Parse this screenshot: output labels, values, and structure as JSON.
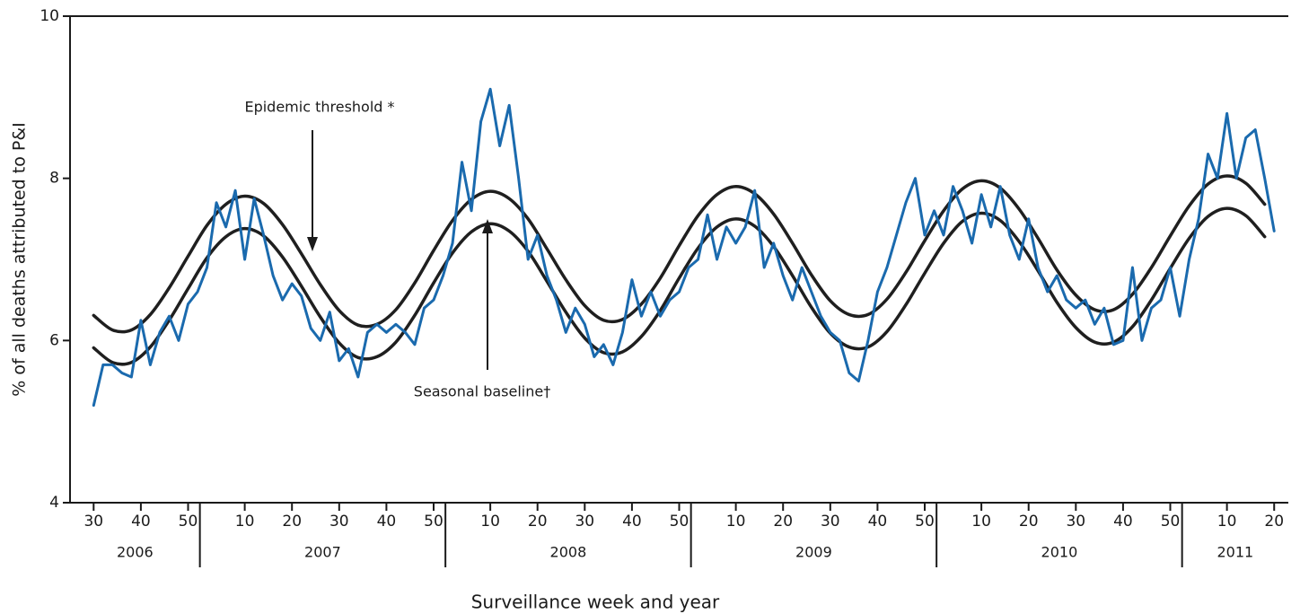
{
  "chart_data": {
    "type": "line",
    "y_label": "% of all deaths attributed to P&I",
    "x_label": "Surveillance week and year",
    "annotations": [
      "Epidemic threshold *",
      "Seasonal baseline†"
    ],
    "xlim": [
      -5,
      253
    ],
    "ylim": [
      4,
      10
    ],
    "yticks": [
      4,
      6,
      8,
      10
    ],
    "xticks": [
      {
        "value": 0,
        "label": "30"
      },
      {
        "value": 10,
        "label": "40"
      },
      {
        "value": 20,
        "label": "50"
      },
      {
        "value": 32,
        "label": "10"
      },
      {
        "value": 42,
        "label": "20"
      },
      {
        "value": 52,
        "label": "30"
      },
      {
        "value": 62,
        "label": "40"
      },
      {
        "value": 72,
        "label": "50"
      },
      {
        "value": 84,
        "label": "10"
      },
      {
        "value": 94,
        "label": "20"
      },
      {
        "value": 104,
        "label": "30"
      },
      {
        "value": 114,
        "label": "40"
      },
      {
        "value": 124,
        "label": "50"
      },
      {
        "value": 136,
        "label": "10"
      },
      {
        "value": 146,
        "label": "20"
      },
      {
        "value": 156,
        "label": "30"
      },
      {
        "value": 166,
        "label": "40"
      },
      {
        "value": 176,
        "label": "50"
      },
      {
        "value": 188,
        "label": "10"
      },
      {
        "value": 198,
        "label": "20"
      },
      {
        "value": 208,
        "label": "30"
      },
      {
        "value": 218,
        "label": "40"
      },
      {
        "value": 228,
        "label": "50"
      },
      {
        "value": 240,
        "label": "10"
      },
      {
        "value": 250,
        "label": "20"
      }
    ],
    "x_groups": [
      {
        "label": "2006",
        "start": -5,
        "end": 22.5
      },
      {
        "label": "2007",
        "start": 22.5,
        "end": 74.5
      },
      {
        "label": "2008",
        "start": 74.5,
        "end": 126.5
      },
      {
        "label": "2009",
        "start": 126.5,
        "end": 178.5
      },
      {
        "label": "2010",
        "start": 178.5,
        "end": 230.5
      },
      {
        "label": "2011",
        "start": 230.5,
        "end": 253
      }
    ],
    "series": [
      {
        "color": "#1f1f1f",
        "smooth": true,
        "x": [
          0,
          4,
          8,
          12,
          16,
          20,
          24,
          28,
          32,
          36,
          40,
          44,
          48,
          52,
          56,
          60,
          64,
          68,
          72,
          76,
          80,
          84,
          88,
          92,
          96,
          100,
          104,
          108,
          112,
          116,
          120,
          124,
          128,
          132,
          136,
          140,
          144,
          148,
          152,
          156,
          160,
          164,
          168,
          172,
          176,
          180,
          184,
          188,
          192,
          196,
          200,
          204,
          208,
          212,
          216,
          220,
          224,
          228,
          232,
          236,
          240,
          244,
          248
        ],
        "values": [
          6.31,
          6.13,
          6.13,
          6.32,
          6.65,
          7.04,
          7.42,
          7.68,
          7.78,
          7.69,
          7.43,
          7.07,
          6.69,
          6.37,
          6.19,
          6.2,
          6.38,
          6.71,
          7.11,
          7.48,
          7.74,
          7.84,
          7.75,
          7.5,
          7.13,
          6.75,
          6.43,
          6.25,
          6.26,
          6.45,
          6.77,
          7.17,
          7.54,
          7.8,
          7.9,
          7.81,
          7.56,
          7.2,
          6.81,
          6.49,
          6.32,
          6.32,
          6.51,
          6.84,
          7.23,
          7.6,
          7.87,
          7.97,
          7.88,
          7.62,
          7.26,
          6.87,
          6.56,
          6.38,
          6.38,
          6.57,
          6.9,
          7.29,
          7.66,
          7.93,
          8.03,
          7.94,
          7.68
        ]
      },
      {
        "color": "#1f1f1f",
        "smooth": true,
        "x": [
          0,
          4,
          8,
          12,
          16,
          20,
          24,
          28,
          32,
          36,
          40,
          44,
          48,
          52,
          56,
          60,
          64,
          68,
          72,
          76,
          80,
          84,
          88,
          92,
          96,
          100,
          104,
          108,
          112,
          116,
          120,
          124,
          128,
          132,
          136,
          140,
          144,
          148,
          152,
          156,
          160,
          164,
          168,
          172,
          176,
          180,
          184,
          188,
          192,
          196,
          200,
          204,
          208,
          212,
          216,
          220,
          224,
          228,
          232,
          236,
          240,
          244,
          248
        ],
        "values": [
          5.91,
          5.73,
          5.73,
          5.92,
          6.25,
          6.64,
          7.02,
          7.28,
          7.38,
          7.29,
          7.03,
          6.67,
          6.29,
          5.97,
          5.79,
          5.8,
          5.98,
          6.31,
          6.71,
          7.08,
          7.34,
          7.44,
          7.35,
          7.1,
          6.73,
          6.35,
          6.03,
          5.85,
          5.86,
          6.05,
          6.37,
          6.77,
          7.14,
          7.4,
          7.5,
          7.41,
          7.16,
          6.8,
          6.41,
          6.09,
          5.92,
          5.92,
          6.11,
          6.44,
          6.83,
          7.2,
          7.47,
          7.57,
          7.48,
          7.22,
          6.86,
          6.47,
          6.16,
          5.98,
          5.98,
          6.17,
          6.5,
          6.89,
          7.26,
          7.53,
          7.63,
          7.54,
          7.28
        ]
      },
      {
        "color": "#1a6aae",
        "smooth": false,
        "x": [
          0,
          2,
          4,
          6,
          8,
          10,
          12,
          14,
          16,
          18,
          20,
          22,
          24,
          26,
          28,
          30,
          32,
          34,
          36,
          38,
          40,
          42,
          44,
          46,
          48,
          50,
          52,
          54,
          56,
          58,
          60,
          62,
          64,
          66,
          68,
          70,
          72,
          74,
          76,
          78,
          80,
          82,
          84,
          86,
          88,
          90,
          92,
          94,
          96,
          98,
          100,
          102,
          104,
          106,
          108,
          110,
          112,
          114,
          116,
          118,
          120,
          122,
          124,
          126,
          128,
          130,
          132,
          134,
          136,
          138,
          140,
          142,
          144,
          146,
          148,
          150,
          152,
          154,
          156,
          158,
          160,
          162,
          164,
          166,
          168,
          170,
          172,
          174,
          176,
          178,
          180,
          182,
          184,
          186,
          188,
          190,
          192,
          194,
          196,
          198,
          200,
          202,
          204,
          206,
          208,
          210,
          212,
          214,
          216,
          218,
          220,
          222,
          224,
          226,
          228,
          230,
          232,
          234,
          236,
          238,
          240,
          242,
          244,
          246,
          248,
          250
        ],
        "values": [
          5.2,
          5.7,
          5.7,
          5.6,
          5.55,
          6.25,
          5.7,
          6.1,
          6.3,
          6.0,
          6.45,
          6.6,
          6.9,
          7.7,
          7.4,
          7.85,
          7.0,
          7.75,
          7.3,
          6.8,
          6.5,
          6.7,
          6.55,
          6.15,
          6.0,
          6.35,
          5.75,
          5.9,
          5.55,
          6.1,
          6.2,
          6.1,
          6.2,
          6.1,
          5.95,
          6.4,
          6.5,
          6.8,
          7.2,
          8.2,
          7.6,
          8.7,
          9.1,
          8.4,
          8.9,
          8.0,
          7.0,
          7.3,
          6.8,
          6.5,
          6.1,
          6.4,
          6.2,
          5.8,
          5.95,
          5.7,
          6.1,
          6.75,
          6.3,
          6.6,
          6.3,
          6.5,
          6.6,
          6.9,
          7.0,
          7.55,
          7.0,
          7.4,
          7.2,
          7.4,
          7.85,
          6.9,
          7.2,
          6.8,
          6.5,
          6.9,
          6.6,
          6.3,
          6.1,
          6.0,
          5.6,
          5.5,
          6.0,
          6.6,
          6.9,
          7.3,
          7.7,
          8.0,
          7.3,
          7.6,
          7.3,
          7.9,
          7.6,
          7.2,
          7.8,
          7.4,
          7.9,
          7.3,
          7.0,
          7.5,
          6.9,
          6.6,
          6.8,
          6.5,
          6.4,
          6.5,
          6.2,
          6.4,
          5.95,
          6.0,
          6.9,
          6.0,
          6.4,
          6.5,
          6.9,
          6.3,
          7.0,
          7.5,
          8.3,
          8.0,
          8.8,
          8.0,
          8.5,
          8.6,
          8.0,
          7.35
        ]
      }
    ]
  }
}
